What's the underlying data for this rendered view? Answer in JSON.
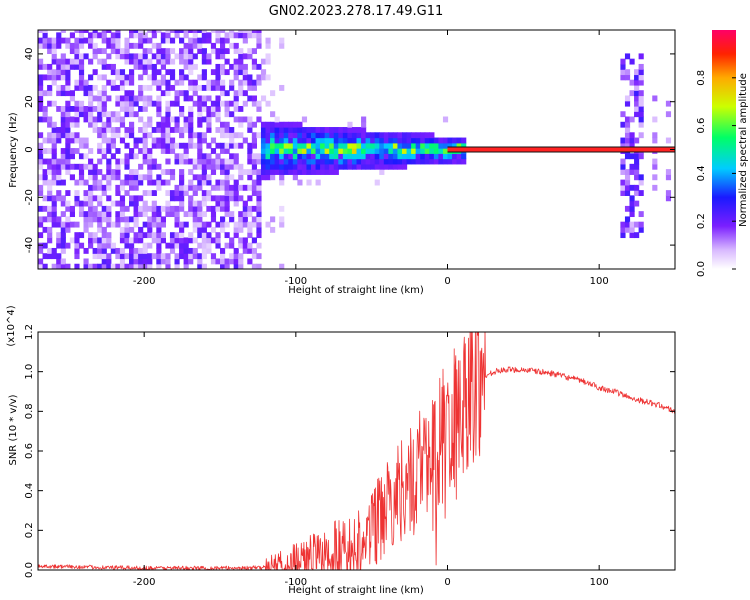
{
  "title": "GN02.2023.278.17.49.G11",
  "chart_data": [
    {
      "type": "heatmap",
      "xlabel": "Height of straight line (km)",
      "ylabel": "Frequency (Hz)",
      "xlim": [
        -270,
        150
      ],
      "ylim": [
        -50,
        50
      ],
      "x_ticks": [
        -200,
        -100,
        0,
        100
      ],
      "y_ticks": [
        -40,
        -20,
        0,
        20,
        40
      ],
      "colorbar": {
        "label": "Normalized spectral amplitude",
        "range": [
          0,
          1
        ],
        "ticks": [
          0.0,
          0.2,
          0.4,
          0.6,
          0.8
        ]
      },
      "regions": [
        {
          "name": "noise",
          "x": [
            -270,
            -125
          ],
          "freq": [
            -50,
            50
          ],
          "amplitude": 0.12
        },
        {
          "name": "signal-onset",
          "x": [
            -125,
            10
          ],
          "freq": [
            -5,
            5
          ],
          "amplitude": 0.5
        },
        {
          "name": "carrier-line",
          "x": [
            0,
            150
          ],
          "freq": [
            0,
            0
          ],
          "amplitude": 0.9
        },
        {
          "name": "late-burst",
          "x": [
            115,
            125
          ],
          "freq": [
            -40,
            40
          ],
          "amplitude": 0.2
        }
      ],
      "grid": false
    },
    {
      "type": "line",
      "xlabel": "Height of straight line (km)",
      "ylabel": "SNR (10 * v/v)",
      "y_multiplier": "(x10^4)",
      "xlim": [
        -270,
        150
      ],
      "ylim": [
        0,
        1.2
      ],
      "x_ticks": [
        -200,
        -100,
        0,
        100
      ],
      "y_ticks": [
        0.0,
        0.2,
        0.4,
        0.6,
        0.8,
        1.0,
        1.2
      ],
      "color": "#ee3333",
      "series": [
        {
          "x": [
            -270,
            -240,
            -200,
            -160,
            -130,
            -120,
            -100,
            -80,
            -60,
            -50,
            -40,
            -30,
            -20,
            -10,
            0,
            10,
            20,
            30,
            40,
            50,
            60,
            70,
            80,
            90,
            100,
            110,
            120,
            130,
            140,
            150
          ],
          "values": [
            0.02,
            0.015,
            0.01,
            0.01,
            0.01,
            0.015,
            0.04,
            0.07,
            0.13,
            0.22,
            0.3,
            0.42,
            0.5,
            0.6,
            0.72,
            0.84,
            0.95,
            1.0,
            1.01,
            1.01,
            1.0,
            0.99,
            0.97,
            0.95,
            0.92,
            0.9,
            0.87,
            0.85,
            0.83,
            0.8
          ]
        }
      ],
      "grid": false
    }
  ]
}
